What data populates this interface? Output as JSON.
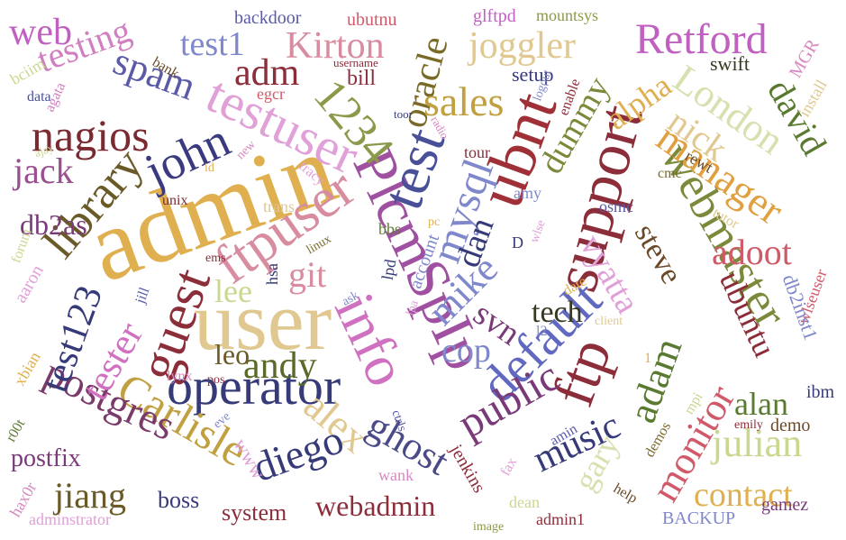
{
  "palette": {
    "gold": "#e0b050",
    "wheat": "#e0c890",
    "maroon": "#8c2d3a",
    "olive": "#7a6a28",
    "navy": "#363a78",
    "periwinkle": "#7a80cc",
    "orchid": "#c060c0",
    "pink": "#d888c0",
    "rose": "#d05a6a",
    "sage": "#c8d890",
    "green": "#5a7a32",
    "brown": "#6a4a2a",
    "purple": "#7a3a7a"
  },
  "words": [
    {
      "text": "admin",
      "color": "#e0b050"
    },
    {
      "text": "user",
      "color": "#e0c890"
    },
    {
      "text": "operator",
      "color": "#363a78"
    },
    {
      "text": "support",
      "color": "#8c2d3a"
    },
    {
      "text": "ubnt",
      "color": "#a03038"
    },
    {
      "text": "PlcmSpIp",
      "color": "#a050a0"
    },
    {
      "text": "info",
      "color": "#d070c0"
    },
    {
      "text": "test",
      "color": "#4a5098"
    },
    {
      "text": "ftpuser",
      "color": "#d88ca0"
    },
    {
      "text": "guest",
      "color": "#8c2d3a"
    },
    {
      "text": "testuser",
      "color": "#e0a0d8"
    },
    {
      "text": "ftp",
      "color": "#8c2d3a"
    },
    {
      "text": "default",
      "color": "#6068c0"
    },
    {
      "text": "webmaster",
      "color": "#7a8a3a"
    },
    {
      "text": "mysql",
      "color": "#8088cc"
    },
    {
      "text": "1234",
      "color": "#8a9a4a"
    },
    {
      "text": "oracle",
      "color": "#7a6a28"
    },
    {
      "text": "library",
      "color": "#6a5a28"
    },
    {
      "text": "nagios",
      "color": "#7a2a30"
    },
    {
      "text": "john",
      "color": "#3a3a80"
    },
    {
      "text": "Carlisle",
      "color": "#c0a040"
    },
    {
      "text": "postgres",
      "color": "#7a3a6a"
    },
    {
      "text": "andy",
      "color": "#5a6a2a"
    },
    {
      "text": "alex",
      "color": "#e0c890"
    },
    {
      "text": "ghost",
      "color": "#4a4a88"
    },
    {
      "text": "diego",
      "color": "#363a78"
    },
    {
      "text": "public",
      "color": "#7a3a7a"
    },
    {
      "text": "music",
      "color": "#363a78"
    },
    {
      "text": "adam",
      "color": "#5a7a32"
    },
    {
      "text": "monitor",
      "color": "#d05a6a"
    },
    {
      "text": "julian",
      "color": "#c8d890"
    },
    {
      "text": "contact",
      "color": "#e0b050"
    },
    {
      "text": "manager",
      "color": "#e0a040"
    },
    {
      "text": "London",
      "color": "#d8e0b0"
    },
    {
      "text": "Retford",
      "color": "#c060c0"
    },
    {
      "text": "joggler",
      "color": "#e0c890"
    },
    {
      "text": "sales",
      "color": "#c0a040"
    },
    {
      "text": "Kirton",
      "color": "#d88ca0"
    },
    {
      "text": "adm",
      "color": "#8c2d3a"
    },
    {
      "text": "spam",
      "color": "#5a5aa8"
    },
    {
      "text": "test1",
      "color": "#8088cc"
    },
    {
      "text": "testing",
      "color": "#d080c0"
    },
    {
      "text": "web",
      "color": "#c060c0"
    },
    {
      "text": "jack",
      "color": "#9a5090"
    },
    {
      "text": "db2as",
      "color": "#7a3a7a"
    },
    {
      "text": "test123",
      "color": "#363a78"
    },
    {
      "text": "tester",
      "color": "#d070c0"
    },
    {
      "text": "git",
      "color": "#d88ca0"
    },
    {
      "text": "lee",
      "color": "#c8d890"
    },
    {
      "text": "leo",
      "color": "#6a5a28"
    },
    {
      "text": "mike",
      "color": "#8088cc"
    },
    {
      "text": "dan",
      "color": "#363a78"
    },
    {
      "text": "svn",
      "color": "#7a3a7a"
    },
    {
      "text": "cop",
      "color": "#8088cc"
    },
    {
      "text": "tech",
      "color": "#363a20"
    },
    {
      "text": "vyatta",
      "color": "#e0a0d8"
    },
    {
      "text": "steve",
      "color": "#6a4a2a"
    },
    {
      "text": "adoot",
      "color": "#d05a6a"
    },
    {
      "text": "ubuntu",
      "color": "#8c2d3a"
    },
    {
      "text": "alan",
      "color": "#5a7a32"
    },
    {
      "text": "gary",
      "color": "#d8e0b0"
    },
    {
      "text": "nick",
      "color": "#e0c890"
    },
    {
      "text": "david",
      "color": "#5a7a32"
    },
    {
      "text": "alpha",
      "color": "#e0b050"
    },
    {
      "text": "dummy",
      "color": "#7a8a3a"
    },
    {
      "text": "webadmin",
      "color": "#8c2d3a"
    },
    {
      "text": "jiang",
      "color": "#6a5a28"
    },
    {
      "text": "postfix",
      "color": "#7a3a7a"
    },
    {
      "text": "system",
      "color": "#8c2d3a"
    },
    {
      "text": "boss",
      "color": "#363a78"
    },
    {
      "text": "bill",
      "color": "#8c2d3a"
    },
    {
      "text": "setup",
      "color": "#363a78"
    },
    {
      "text": "swift",
      "color": "#363a20"
    },
    {
      "text": "backdoor",
      "color": "#5a5aa8"
    },
    {
      "text": "ubutnu",
      "color": "#d05a6a"
    },
    {
      "text": "glftpd",
      "color": "#c060c0"
    },
    {
      "text": "mountsys",
      "color": "#8a9a4a"
    },
    {
      "text": "bank",
      "color": "#6a4a2a"
    },
    {
      "text": "egcr",
      "color": "#d05a6a"
    },
    {
      "text": "username",
      "color": "#8c2d3a"
    },
    {
      "text": "MGR",
      "color": "#d888c0"
    },
    {
      "text": "install",
      "color": "#e0c890"
    },
    {
      "text": "bciim",
      "color": "#c8d890"
    },
    {
      "text": "agata",
      "color": "#d080c0"
    },
    {
      "text": "data",
      "color": "#4a5098"
    },
    {
      "text": "ajay",
      "color": "#c8d890"
    },
    {
      "text": "new",
      "color": "#d888c0"
    },
    {
      "text": "id",
      "color": "#e0b050"
    },
    {
      "text": "unix",
      "color": "#7a2a30"
    },
    {
      "text": "trans",
      "color": "#e0c890"
    },
    {
      "text": "tracy",
      "color": "#e0a0d8"
    },
    {
      "text": "toor",
      "color": "#363a78"
    },
    {
      "text": "radio",
      "color": "#d888c0"
    },
    {
      "text": "logout",
      "color": "#8088cc"
    },
    {
      "text": "enable",
      "color": "#8c2d3a"
    },
    {
      "text": "tour",
      "color": "#8c2d3a"
    },
    {
      "text": "amy",
      "color": "#8088cc"
    },
    {
      "text": "cmc",
      "color": "#7a6a28"
    },
    {
      "text": "rewt",
      "color": "#6a4a2a"
    },
    {
      "text": "osmc",
      "color": "#5a5aa8"
    },
    {
      "text": "tutor",
      "color": "#e0c890"
    },
    {
      "text": "bbs",
      "color": "#5a7a32"
    },
    {
      "text": "account",
      "color": "#8088cc"
    },
    {
      "text": "pc",
      "color": "#e0b050"
    },
    {
      "text": "lpd",
      "color": "#363a78"
    },
    {
      "text": "wlse",
      "color": "#e0a0d8"
    },
    {
      "text": "D",
      "color": "#363a78"
    },
    {
      "text": "forum",
      "color": "#c8d890"
    },
    {
      "text": "aaron",
      "color": "#e0a0d8"
    },
    {
      "text": "linux",
      "color": "#7a6a28"
    },
    {
      "text": "ems",
      "color": "#8c2d3a"
    },
    {
      "text": "jill",
      "color": "#5a5aa8"
    },
    {
      "text": "hsa",
      "color": "#363a78"
    },
    {
      "text": "ask",
      "color": "#8088cc"
    },
    {
      "text": "lpa",
      "color": "#e0a0d8"
    },
    {
      "text": "l2",
      "color": "#8088cc"
    },
    {
      "text": "date",
      "color": "#e0b050"
    },
    {
      "text": "1",
      "color": "#e0b050"
    },
    {
      "text": "client",
      "color": "#e0c890"
    },
    {
      "text": "mpi",
      "color": "#c8d890"
    },
    {
      "text": "wlseuser",
      "color": "#d05a6a"
    },
    {
      "text": "db2inst1",
      "color": "#8088cc"
    },
    {
      "text": "ibm",
      "color": "#363a78"
    },
    {
      "text": "demo",
      "color": "#6a4a2a"
    },
    {
      "text": "emily",
      "color": "#8c2d3a"
    },
    {
      "text": "gamez",
      "color": "#7a3a7a"
    },
    {
      "text": "BACKUP",
      "color": "#8088cc"
    },
    {
      "text": "help",
      "color": "#6a4a2a"
    },
    {
      "text": "demos",
      "color": "#7a6a28"
    },
    {
      "text": "admin1",
      "color": "#8c2d3a"
    },
    {
      "text": "image",
      "color": "#8a9a4a"
    },
    {
      "text": "dean",
      "color": "#c8d890"
    },
    {
      "text": "fax",
      "color": "#e0a0d8"
    },
    {
      "text": "amin",
      "color": "#5a5aa8"
    },
    {
      "text": "jenkins",
      "color": "#8c2d3a"
    },
    {
      "text": "ctrls",
      "color": "#5a5aa8"
    },
    {
      "text": "wank",
      "color": "#d888c0"
    },
    {
      "text": "eve",
      "color": "#8088cc"
    },
    {
      "text": "www",
      "color": "#e0a0d8"
    },
    {
      "text": "lynx",
      "color": "#d888c0"
    },
    {
      "text": "pos",
      "color": "#8c2d3a"
    },
    {
      "text": "xbian",
      "color": "#e0b050"
    },
    {
      "text": "r00t",
      "color": "#5a7a32"
    },
    {
      "text": "hax0r",
      "color": "#d888c0"
    },
    {
      "text": "adminstrator",
      "color": "#e0a0d8"
    }
  ]
}
